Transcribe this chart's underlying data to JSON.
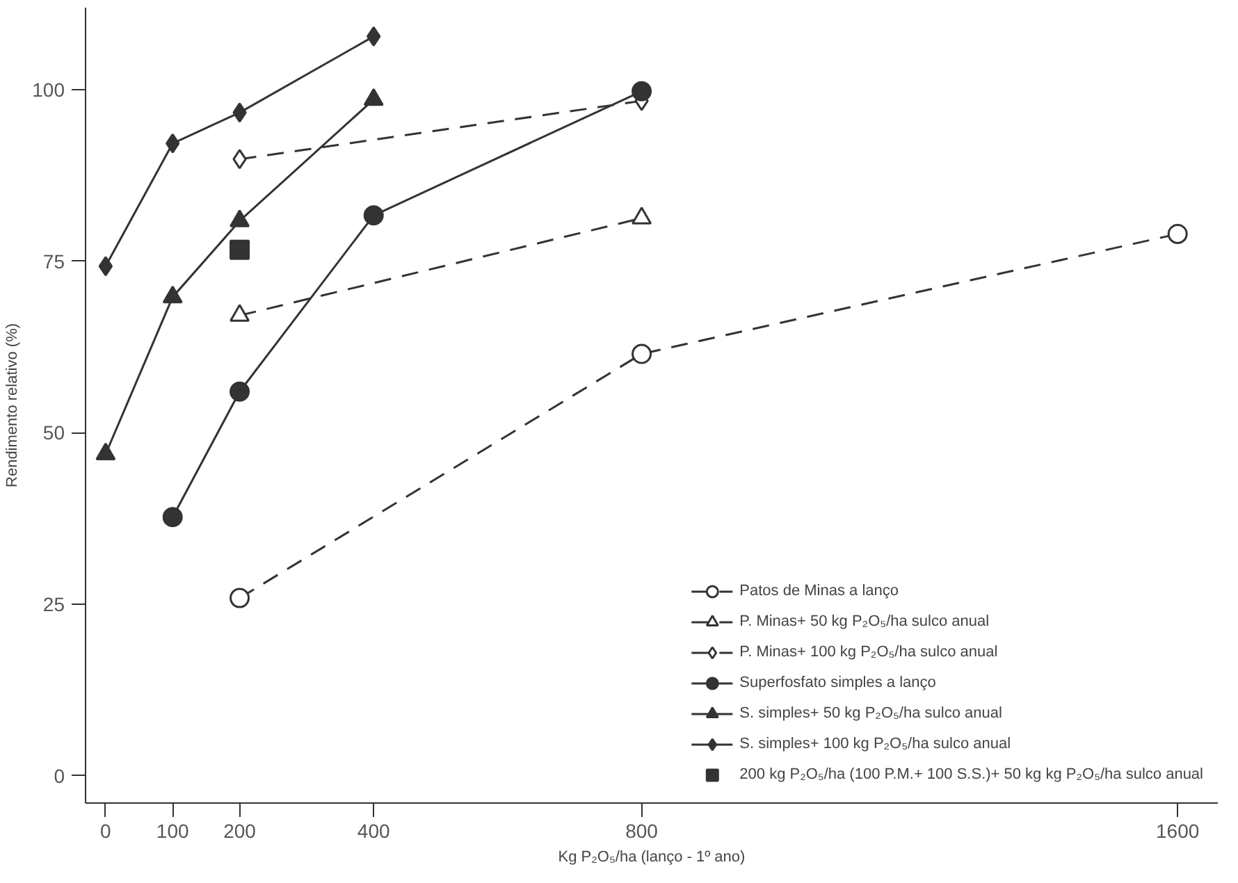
{
  "chart_data": {
    "type": "line",
    "xlabel": "Kg P₂O₅/ha (lanço - 1º ano)",
    "ylabel": "Rendimento relativo (%)",
    "xlim": [
      -30,
      1660
    ],
    "ylim": [
      -4,
      112
    ],
    "xticks": [
      0,
      100,
      200,
      400,
      800,
      1600
    ],
    "yticks": [
      0,
      25,
      50,
      75,
      100
    ],
    "grid": false,
    "legend": "bottom right",
    "series": [
      {
        "name": "Patos de Minas a lanço",
        "color": "#333333",
        "x": [
          200,
          800,
          1600
        ],
        "values": [
          25.9,
          61.5,
          79
        ],
        "marker": "circle",
        "line_style": "dashed"
      },
      {
        "name": "P. Minas+ 50 kg P₂O₅/ha sulco anual",
        "color": "#333333",
        "x": [
          200,
          800
        ],
        "values": [
          67.1,
          81.3
        ],
        "marker": "triangle",
        "line_style": "dashed"
      },
      {
        "name": "P. Minas+ 100 kg P₂O₅/ha sulco anual",
        "color": "#333333",
        "x": [
          200,
          800
        ],
        "values": [
          89.9,
          98.4
        ],
        "marker": "diamond",
        "line_style": "dashed"
      },
      {
        "name": "Superfosfato simples a lanço",
        "color": "#333333",
        "x": [
          100,
          200,
          400,
          800
        ],
        "values": [
          37.7,
          56,
          81.7,
          99.8
        ],
        "marker": "circle",
        "line_style": "solid"
      },
      {
        "name": "S. simples+ 50 kg P₂O₅/ha sulco anual",
        "color": "#333333",
        "x": [
          0,
          100,
          200,
          400
        ],
        "values": [
          46.9,
          69.8,
          80.9,
          98.6
        ],
        "marker": "triangle",
        "line_style": "solid"
      },
      {
        "name": "S. simples+ 100 kg P₂O₅/ha sulco anual",
        "color": "#333333",
        "x": [
          0,
          100,
          200,
          400
        ],
        "values": [
          74.3,
          92.2,
          96.7,
          107.8
        ],
        "marker": "diamond",
        "line_style": "solid"
      },
      {
        "name": "200 kg P₂O₅/ha (100 P.M.+ 100 S.S.)+ 50 kg kg P₂O₅/ha sulco anual",
        "type": "scatter",
        "color": "#333333",
        "x": [
          200
        ],
        "values": [
          76.7
        ],
        "marker": "square"
      }
    ]
  }
}
